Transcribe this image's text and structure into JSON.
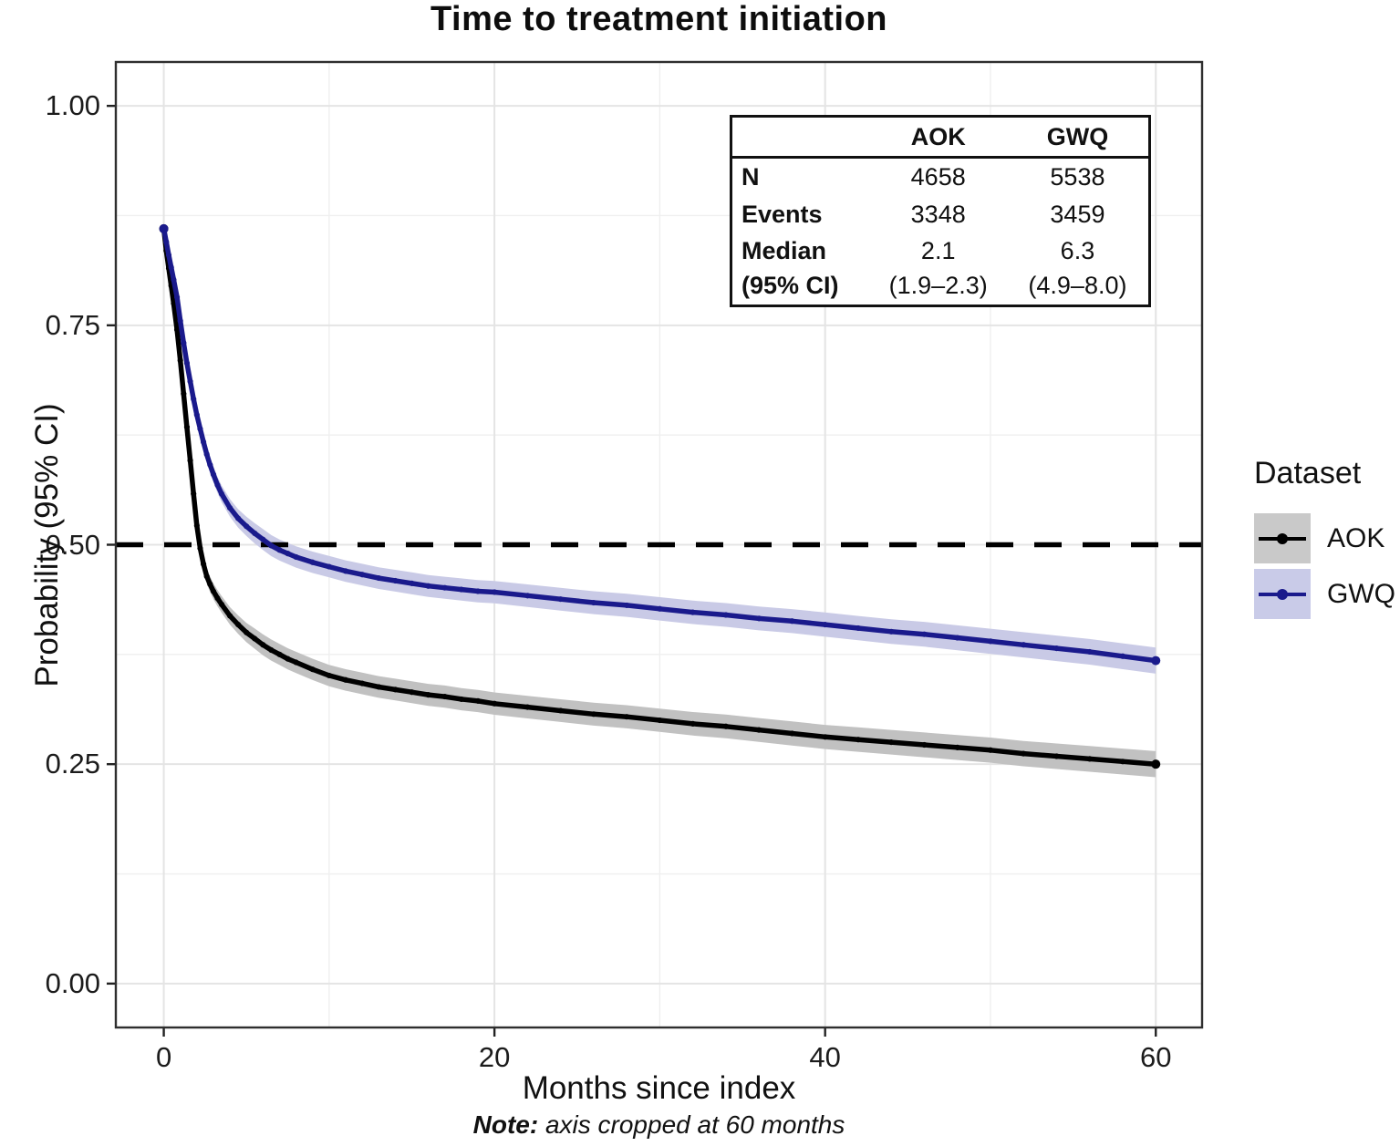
{
  "chart_data": {
    "type": "line",
    "subtype": "kaplan-meier-survival",
    "title": "Time to treatment initiation",
    "xlabel": "Months since index",
    "ylabel": "Probability (95% CI)",
    "note_bold": "Note:",
    "note_text": "axis cropped at 60 months",
    "axes": {
      "xlim": [
        -2.9,
        62.8
      ],
      "ylim": [
        -0.05,
        1.05
      ],
      "x_major": [
        0,
        20,
        40,
        60
      ],
      "x_minor": [
        10,
        30,
        50
      ],
      "x_tick_labels": [
        "0",
        "20",
        "40",
        "60"
      ],
      "y_major": [
        0.0,
        0.25,
        0.5,
        0.75,
        1.0
      ],
      "y_minor": [
        0.125,
        0.375,
        0.625,
        0.875
      ],
      "y_tick_labels": [
        "0.00",
        "0.25",
        "0.50",
        "0.75",
        "1.00"
      ],
      "grid": true
    },
    "reference_line": {
      "y": 0.5,
      "style": "dashed",
      "color": "#000000"
    },
    "ci_band": {
      "half_width_start": 0.006,
      "half_width_mid": 0.012,
      "mid_x": 6,
      "half_width_end": 0.015
    },
    "colors": {
      "grid_major": "#e4e4e4",
      "grid_minor": "#efefef",
      "panel_border": "#2e2e2e"
    },
    "x_shared": [
      0,
      0.15,
      0.3,
      0.45,
      0.6,
      0.8,
      1,
      1.2,
      1.4,
      1.6,
      1.8,
      2,
      2.2,
      2.4,
      2.6,
      2.8,
      3,
      3.25,
      3.5,
      4,
      4.5,
      5,
      5.5,
      6,
      6.5,
      7,
      7.5,
      8,
      9,
      10,
      11,
      12,
      13,
      14,
      15,
      16,
      17,
      18,
      19,
      20,
      22,
      24,
      26,
      28,
      30,
      32,
      34,
      36,
      38,
      40,
      42,
      44,
      46,
      48,
      50,
      52,
      54,
      56,
      58,
      60
    ],
    "series": [
      {
        "name": "AOK",
        "color": "#000000",
        "band_color": "#c1c1c1",
        "y": [
          0.86,
          0.835,
          0.815,
          0.795,
          0.775,
          0.745,
          0.71,
          0.672,
          0.634,
          0.596,
          0.558,
          0.522,
          0.496,
          0.478,
          0.464,
          0.455,
          0.447,
          0.439,
          0.432,
          0.419,
          0.409,
          0.4,
          0.393,
          0.386,
          0.38,
          0.375,
          0.37,
          0.366,
          0.358,
          0.351,
          0.346,
          0.342,
          0.338,
          0.335,
          0.332,
          0.329,
          0.327,
          0.324,
          0.322,
          0.319,
          0.315,
          0.311,
          0.307,
          0.304,
          0.3,
          0.296,
          0.293,
          0.289,
          0.285,
          0.281,
          0.278,
          0.275,
          0.272,
          0.269,
          0.266,
          0.262,
          0.259,
          0.256,
          0.253,
          0.25
        ]
      },
      {
        "name": "GWQ",
        "color": "#1a1a8c",
        "band_color": "#c9cae6",
        "y": [
          0.86,
          0.845,
          0.83,
          0.816,
          0.802,
          0.782,
          0.755,
          0.73,
          0.707,
          0.686,
          0.666,
          0.648,
          0.632,
          0.617,
          0.603,
          0.591,
          0.58,
          0.568,
          0.558,
          0.542,
          0.53,
          0.521,
          0.513,
          0.506,
          0.499,
          0.494,
          0.49,
          0.486,
          0.48,
          0.475,
          0.47,
          0.466,
          0.462,
          0.459,
          0.456,
          0.453,
          0.451,
          0.449,
          0.447,
          0.446,
          0.442,
          0.438,
          0.434,
          0.431,
          0.427,
          0.423,
          0.42,
          0.416,
          0.413,
          0.409,
          0.405,
          0.401,
          0.398,
          0.394,
          0.39,
          0.386,
          0.382,
          0.378,
          0.373,
          0.368
        ]
      }
    ]
  },
  "stats_table": {
    "col_headers": [
      "AOK",
      "GWQ"
    ],
    "rows": [
      {
        "label": "N",
        "aok": "4658",
        "gwq": "5538"
      },
      {
        "label": "Events",
        "aok": "3348",
        "gwq": "3459"
      },
      {
        "label": "Median",
        "aok": "2.1",
        "gwq": "6.3"
      },
      {
        "label": "(95% CI)",
        "aok": "(1.9–2.3)",
        "gwq": "(4.9–8.0)"
      }
    ]
  },
  "legend": {
    "title": "Dataset",
    "items": [
      {
        "label": "AOK",
        "line_color": "#000000",
        "fill": "#c9c9c9"
      },
      {
        "label": "GWQ",
        "line_color": "#1a1a8c",
        "fill": "#c9cbe8"
      }
    ]
  }
}
